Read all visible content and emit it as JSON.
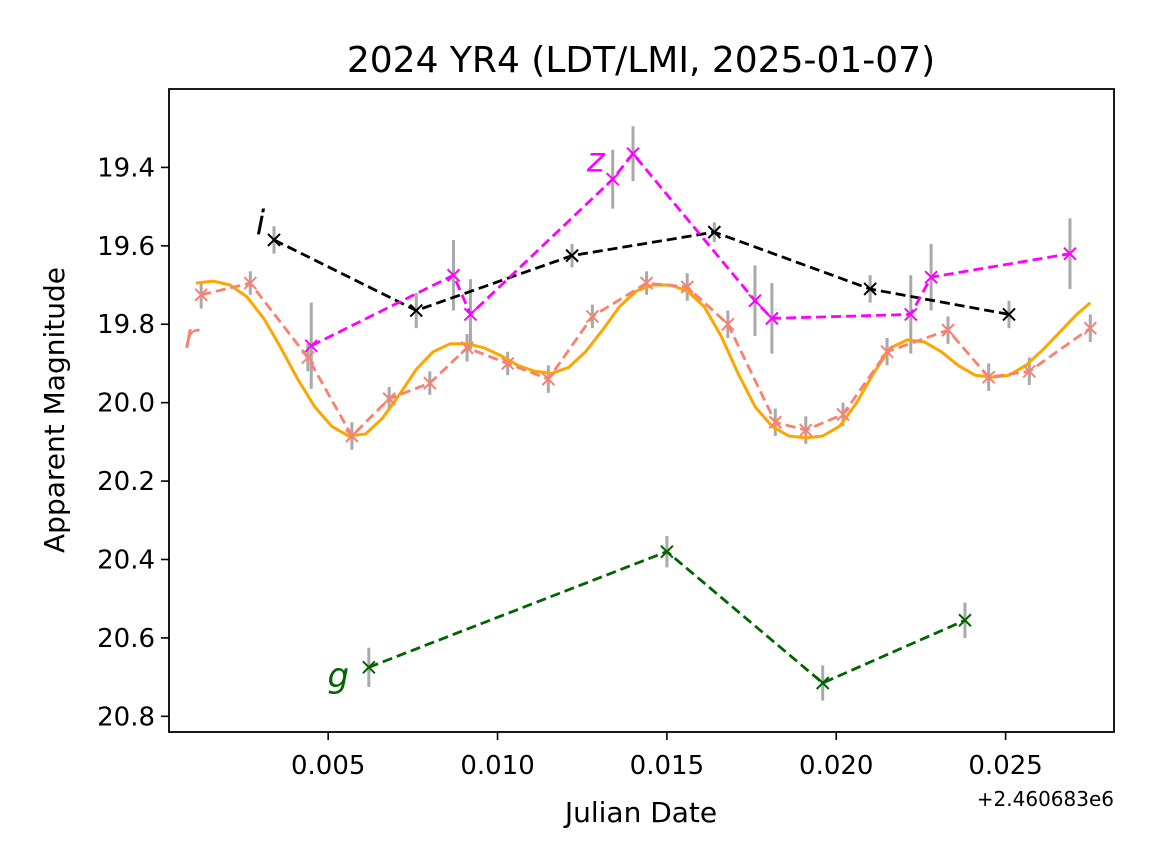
{
  "chart_data": {
    "type": "line",
    "title": "2024 YR4 (LDT/LMI, 2025-01-07)",
    "xlabel": "Julian Date",
    "ylabel": "Apparent Magnitude",
    "x_offset_label": "+2.460683e6",
    "x_offset": 2460683,
    "xlim": [
      0.0003,
      0.0282
    ],
    "ylim": [
      20.84,
      19.2
    ],
    "y_inverted": true,
    "x_ticks": [
      0.005,
      0.01,
      0.015,
      0.02,
      0.025
    ],
    "x_tick_labels": [
      "0.005",
      "0.010",
      "0.015",
      "0.020",
      "0.025"
    ],
    "y_ticks": [
      19.4,
      19.6,
      19.8,
      20.0,
      20.2,
      20.4,
      20.6,
      20.8
    ],
    "y_tick_labels": [
      "19.4",
      "19.6",
      "19.8",
      "20.0",
      "20.2",
      "20.4",
      "20.6",
      "20.8"
    ],
    "grid": false,
    "series": [
      {
        "name": "r",
        "color": "#fa8072",
        "line_style": "dashed",
        "marker": "x",
        "x": [
          0.00125,
          0.0027,
          0.0044,
          0.0057,
          0.0068,
          0.008,
          0.0091,
          0.0103,
          0.0115,
          0.0128,
          0.0144,
          0.0156,
          0.0168,
          0.0182,
          0.0191,
          0.0202,
          0.0215,
          0.0233,
          0.0245,
          0.0257,
          0.0275
        ],
        "y": [
          19.725,
          19.695,
          19.885,
          20.085,
          19.99,
          19.95,
          19.86,
          19.9,
          19.94,
          19.78,
          19.695,
          19.705,
          19.8,
          20.05,
          20.07,
          20.03,
          19.87,
          19.815,
          19.935,
          19.92,
          19.81
        ],
        "yerr": [
          0.035,
          0.03,
          0.035,
          0.035,
          0.03,
          0.03,
          0.035,
          0.03,
          0.035,
          0.03,
          0.03,
          0.035,
          0.035,
          0.035,
          0.035,
          0.03,
          0.035,
          0.035,
          0.035,
          0.035,
          0.035
        ]
      },
      {
        "name": "i",
        "color": "#000000",
        "line_style": "dashed",
        "marker": "x",
        "x": [
          0.0034,
          0.0076,
          0.0122,
          0.0164,
          0.021,
          0.0251
        ],
        "y": [
          19.585,
          19.765,
          19.625,
          19.565,
          19.71,
          19.775
        ],
        "yerr": [
          0.035,
          0.045,
          0.03,
          0.025,
          0.035,
          0.035
        ]
      },
      {
        "name": "z",
        "color": "#ff00ff",
        "line_style": "dashed",
        "marker": "x",
        "x": [
          0.0045,
          0.0087,
          0.0092,
          0.0134,
          0.014,
          0.0176,
          0.0181,
          0.0222,
          0.0228,
          0.0269
        ],
        "y": [
          19.855,
          19.675,
          19.775,
          19.43,
          19.365,
          19.74,
          19.785,
          19.775,
          19.68,
          19.62
        ],
        "yerr": [
          0.11,
          0.09,
          0.09,
          0.075,
          0.07,
          0.09,
          0.09,
          0.1,
          0.085,
          0.09
        ]
      },
      {
        "name": "g",
        "color": "#006400",
        "line_style": "dashed",
        "marker": "x",
        "x": [
          0.0062,
          0.015,
          0.0196,
          0.0238
        ],
        "y": [
          20.675,
          20.38,
          20.715,
          20.555
        ],
        "yerr": [
          0.05,
          0.04,
          0.045,
          0.045
        ]
      }
    ],
    "fit": {
      "color": "#ffa500",
      "x": [
        0.0011,
        0.0016,
        0.0021,
        0.0026,
        0.0031,
        0.0036,
        0.0041,
        0.0046,
        0.0051,
        0.0056,
        0.0061,
        0.0066,
        0.0071,
        0.0076,
        0.0081,
        0.0086,
        0.0091,
        0.0096,
        0.0101,
        0.0106,
        0.0111,
        0.0116,
        0.0121,
        0.0126,
        0.0131,
        0.0136,
        0.0141,
        0.0146,
        0.0151,
        0.0156,
        0.0161,
        0.0166,
        0.0171,
        0.0176,
        0.0181,
        0.0186,
        0.0191,
        0.0196,
        0.0201,
        0.0206,
        0.0211,
        0.0216,
        0.0221,
        0.0226,
        0.0231,
        0.0236,
        0.0241,
        0.0246,
        0.0251,
        0.0256,
        0.0261,
        0.0266,
        0.0271,
        0.0275
      ],
      "y": [
        19.695,
        19.69,
        19.7,
        19.73,
        19.785,
        19.86,
        19.94,
        20.01,
        20.06,
        20.085,
        20.08,
        20.04,
        19.98,
        19.915,
        19.87,
        19.85,
        19.85,
        19.86,
        19.88,
        19.905,
        19.92,
        19.925,
        19.91,
        19.87,
        19.815,
        19.755,
        19.715,
        19.7,
        19.7,
        19.715,
        19.755,
        19.83,
        19.925,
        20.01,
        20.06,
        20.085,
        20.09,
        20.085,
        20.06,
        20.0,
        19.925,
        19.86,
        19.84,
        19.845,
        19.87,
        19.905,
        19.93,
        19.935,
        19.93,
        19.905,
        19.865,
        19.82,
        19.775,
        19.745
      ]
    },
    "band_labels": [
      {
        "text": "i",
        "color": "#000000",
        "x": 0.003,
        "y": 19.54
      },
      {
        "text": "z",
        "color": "#ff00ff",
        "x": 0.0129,
        "y": 19.38
      },
      {
        "text": "r",
        "color": "#fa8072",
        "x": 0.00095,
        "y": 19.83
      },
      {
        "text": "g",
        "color": "#006400",
        "x": 0.0053,
        "y": 20.695
      }
    ]
  }
}
